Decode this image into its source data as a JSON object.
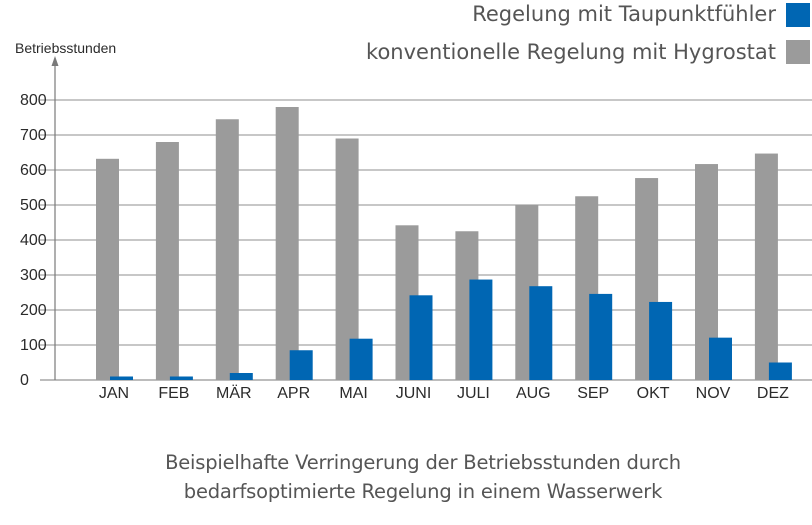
{
  "chart_data": {
    "type": "bar",
    "title": "",
    "xlabel": "",
    "ylabel": "Betriebsstunden",
    "ylim": [
      0,
      800
    ],
    "yticks": [
      0,
      100,
      200,
      300,
      400,
      500,
      600,
      700,
      800
    ],
    "grid": true,
    "legend_position": "top-right",
    "categories": [
      "JAN",
      "FEB",
      "MÄR",
      "APR",
      "MAI",
      "JUNI",
      "JULI",
      "AUG",
      "SEP",
      "OKT",
      "NOV",
      "DEZ"
    ],
    "series": [
      {
        "name": "konventionelle Regelung mit Hygrostat",
        "color": "#9b9b9b",
        "values": [
          632,
          680,
          745,
          780,
          690,
          442,
          425,
          500,
          525,
          577,
          617,
          647
        ]
      },
      {
        "name": "Regelung mit Taupunktfühler",
        "color": "#0066b3",
        "values": [
          10,
          10,
          20,
          85,
          118,
          242,
          287,
          268,
          246,
          223,
          121,
          50
        ]
      }
    ]
  },
  "legend": {
    "items": [
      {
        "label": "Regelung mit Taupunktfühler",
        "color": "#0066b3"
      },
      {
        "label": "konventionelle Regelung mit Hygrostat",
        "color": "#9b9b9b"
      }
    ]
  },
  "caption": {
    "line1": "Beispielhafte Verringerung der Betriebsstunden durch",
    "line2": "bedarfsoptimierte Regelung in einem Wasserwerk"
  }
}
